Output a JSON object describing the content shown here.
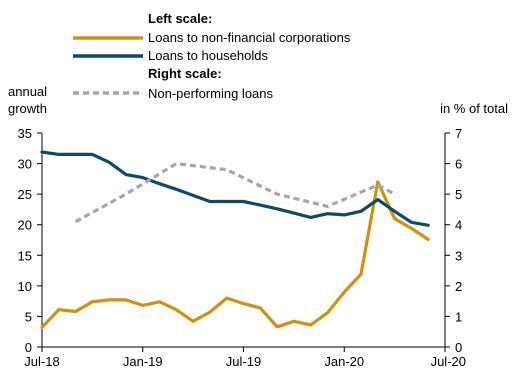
{
  "chart_data": {
    "type": "line",
    "legend": {
      "placement": "top-center",
      "left_heading": "Left scale:",
      "right_heading": "Right scale:",
      "entries": [
        {
          "label": "Loans to non-financial corporations",
          "series": "nfc"
        },
        {
          "label": "Loans to households",
          "series": "households"
        },
        {
          "label": "Non-performing loans",
          "series": "npl"
        }
      ]
    },
    "y_left": {
      "label_line1": "annual",
      "label_line2": "growth",
      "range": [
        0,
        35
      ],
      "ticks": [
        "0",
        "5",
        "10",
        "15",
        "20",
        "25",
        "30",
        "35"
      ]
    },
    "y_right": {
      "label": "in % of total",
      "range": [
        0,
        7
      ],
      "ticks": [
        "0",
        "1",
        "2",
        "3",
        "4",
        "5",
        "6",
        "7"
      ]
    },
    "x_axis": {
      "ticks": [
        "Jul-18",
        "Jan-19",
        "Jul-19",
        "Jan-20",
        "Jul-20"
      ],
      "tick_positions": [
        0,
        6,
        12,
        18,
        24
      ],
      "range": [
        0,
        24
      ]
    },
    "grid": false,
    "series": [
      {
        "id": "nfc",
        "name": "Loans to non-financial corporations",
        "axis": "left",
        "color": "#D4900C",
        "dash": "none",
        "x": [
          0,
          1,
          2,
          3,
          4,
          5,
          6,
          7,
          8,
          9,
          10,
          11,
          12,
          13,
          14,
          15,
          16,
          17,
          18,
          19,
          20,
          21,
          22,
          23
        ],
        "values": [
          3.2,
          6.1,
          5.8,
          7.4,
          7.7,
          7.7,
          6.8,
          7.4,
          6.1,
          4.2,
          5.7,
          8.0,
          7.1,
          6.4,
          3.3,
          4.2,
          3.6,
          5.6,
          9.0,
          11.9,
          27.0,
          21.0,
          19.4,
          17.6
        ]
      },
      {
        "id": "households",
        "name": "Loans to households",
        "axis": "left",
        "color": "#0B4A6F",
        "dash": "none",
        "x": [
          0,
          1,
          2,
          3,
          4,
          5,
          6,
          7,
          8,
          9,
          10,
          11,
          12,
          13,
          14,
          15,
          16,
          17,
          18,
          19,
          20,
          21,
          22,
          23
        ],
        "values": [
          31.9,
          31.5,
          31.5,
          31.5,
          30.2,
          28.2,
          27.7,
          26.7,
          25.8,
          24.8,
          23.8,
          23.8,
          23.8,
          23.2,
          22.6,
          21.9,
          21.2,
          21.8,
          21.6,
          22.2,
          24.1,
          22.2,
          20.4,
          19.9
        ]
      },
      {
        "id": "npl",
        "name": "Non-performing loans",
        "axis": "right",
        "color": "#A6A6A6",
        "dash": "6,4",
        "x": [
          2,
          5,
          8,
          11,
          14,
          17,
          20,
          21
        ],
        "values": [
          4.1,
          5.0,
          6.0,
          5.8,
          5.0,
          4.6,
          5.3,
          5.0
        ]
      }
    ]
  }
}
